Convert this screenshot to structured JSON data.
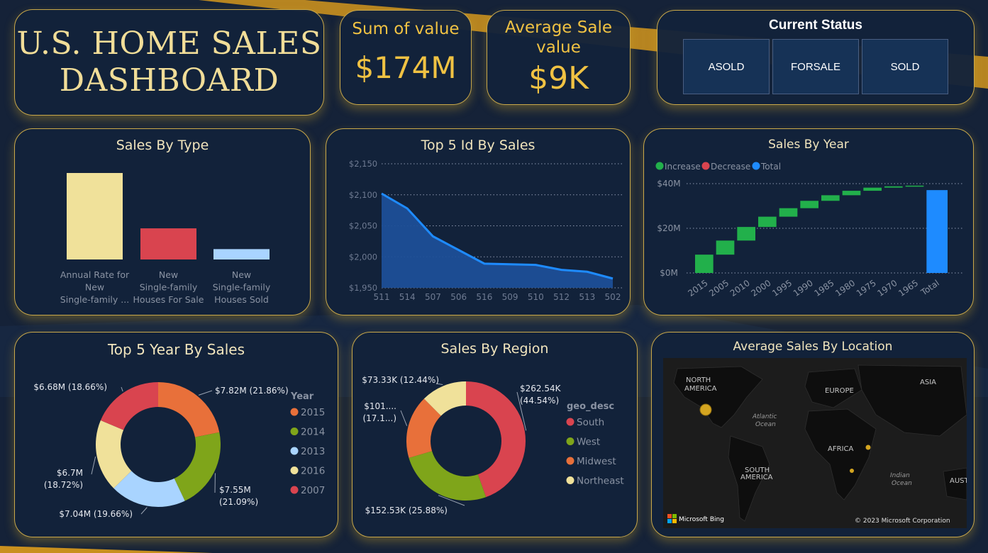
{
  "dashboard_title": "U.S. HOME SALES DASHBOARD",
  "title_line1": "U.S. HOME SALES",
  "title_line2": "DASHBOARD",
  "kpis": {
    "sum": {
      "label": "Sum of value",
      "value": "$174M"
    },
    "avg": {
      "label_line1": "Average Sale",
      "label_line2": "value",
      "value": "$9K"
    }
  },
  "status": {
    "title": "Current Status",
    "buttons": [
      "ASOLD",
      "FORSALE",
      "SOLD"
    ]
  },
  "colors": {
    "gold": "#f0c243",
    "border": "#c9a84a",
    "bg": "#152238"
  },
  "chart_data": [
    {
      "id": "sales_by_type",
      "type": "bar",
      "title": "Sales By Type",
      "categories": [
        [
          "Annual Rate for",
          "New",
          "Single-family ..."
        ],
        [
          "New",
          "Single-family",
          "Houses For Sale"
        ],
        [
          "New",
          "Single-family",
          "Houses Sold"
        ]
      ],
      "values": [
        100,
        36,
        12
      ],
      "colors": [
        "#f0e19a",
        "#d9444f",
        "#a9d4ff"
      ]
    },
    {
      "id": "top5_id",
      "type": "area",
      "title": "Top 5 Id By Sales",
      "x": [
        "511",
        "514",
        "507",
        "506",
        "516",
        "509",
        "510",
        "512",
        "513",
        "502"
      ],
      "y": [
        2102,
        2078,
        2033,
        2011,
        1989,
        1988,
        1987,
        1979,
        1976,
        1965
      ],
      "ylim": [
        1950,
        2150
      ],
      "yticks": [
        "$2,150",
        "$2,100",
        "$2,050",
        "$2,000",
        "$1,950"
      ],
      "color": "#1e8bff"
    },
    {
      "id": "sales_by_year",
      "type": "waterfall",
      "title": "Sales By Year",
      "legend": [
        "Increase",
        "Decrease",
        "Total"
      ],
      "legend_colors": [
        "#22b04b",
        "#d9444f",
        "#1e8bff"
      ],
      "categories": [
        "2015",
        "2005",
        "2010",
        "2000",
        "1995",
        "1990",
        "1985",
        "1980",
        "1975",
        "1970",
        "1965",
        "Total"
      ],
      "increments": [
        8.2,
        6.3,
        6.1,
        4.6,
        3.8,
        3.3,
        2.5,
        2.0,
        1.4,
        0.6,
        0.3
      ],
      "total": 37.1,
      "ylim": [
        0,
        40
      ],
      "yticks": [
        "$40M",
        "$20M",
        "$0M"
      ]
    },
    {
      "id": "top5_year",
      "type": "pie",
      "title": "Top 5 Year By Sales",
      "legend_title": "Year",
      "labels": [
        "2015",
        "2014",
        "2013",
        "2016",
        "2007"
      ],
      "values": [
        21.86,
        21.09,
        19.66,
        18.72,
        18.66
      ],
      "colors": [
        "#e8703a",
        "#7fa51a",
        "#a9d4ff",
        "#f0e19a",
        "#d9444f"
      ],
      "data_labels": [
        [
          "$7.82M (21.86%)"
        ],
        [
          "$7.55M",
          "(21.09%)"
        ],
        [
          "$7.04M (19.66%)"
        ],
        [
          "$6.7M",
          "(18.72%)"
        ],
        [
          "$6.68M (18.66%)"
        ]
      ]
    },
    {
      "id": "sales_by_region",
      "type": "pie",
      "title": "Sales By Region",
      "legend_title": "geo_desc",
      "labels": [
        "South",
        "West",
        "Midwest",
        "Northeast"
      ],
      "values": [
        44.54,
        25.88,
        17.14,
        12.44
      ],
      "colors": [
        "#d9444f",
        "#7fa51a",
        "#e8703a",
        "#f0e19a"
      ],
      "data_labels": [
        [
          "$262.54K",
          "(44.54%)"
        ],
        [
          "$152.53K (25.88%)"
        ],
        [
          "$101....",
          "(17.1...)"
        ],
        [
          "$73.33K (12.44%)"
        ]
      ]
    }
  ],
  "map": {
    "title": "Average Sales By Location",
    "labels": [
      {
        "text": "NORTH",
        "text2": "AMERICA"
      },
      {
        "text": "EUROPE"
      },
      {
        "text": "ASIA"
      },
      {
        "text": "Atlantic",
        "text2": "Ocean"
      },
      {
        "text": "AFRICA"
      },
      {
        "text": "SOUTH",
        "text2": "AMERICA"
      },
      {
        "text": "Indian",
        "text2": "Ocean"
      },
      {
        "text": "AUST"
      }
    ],
    "brand": "Microsoft Bing",
    "copyright": "© 2023 Microsoft Corporation"
  }
}
